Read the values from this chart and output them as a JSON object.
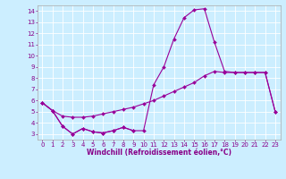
{
  "xlabel": "Windchill (Refroidissement éolien,°C)",
  "bg_color": "#cceeff",
  "line_color": "#990099",
  "grid_color": "#ffffff",
  "xlim": [
    -0.5,
    23.5
  ],
  "ylim": [
    2.5,
    14.5
  ],
  "xticks": [
    0,
    1,
    2,
    3,
    4,
    5,
    6,
    7,
    8,
    9,
    10,
    11,
    12,
    13,
    14,
    15,
    16,
    17,
    18,
    19,
    20,
    21,
    22,
    23
  ],
  "yticks": [
    3,
    4,
    5,
    6,
    7,
    8,
    9,
    10,
    11,
    12,
    13,
    14
  ],
  "c1x": [
    0,
    1,
    2,
    3,
    4,
    5,
    6,
    7,
    8,
    9
  ],
  "c1y": [
    5.8,
    5.1,
    3.7,
    3.0,
    3.5,
    3.2,
    3.1,
    3.3,
    3.6,
    3.3
  ],
  "c2x": [
    0,
    1,
    2,
    3,
    4,
    5,
    6,
    7,
    8,
    9,
    10,
    11,
    12,
    13,
    14,
    15,
    16,
    17,
    18,
    19,
    20,
    21,
    22,
    23
  ],
  "c2y": [
    5.8,
    5.1,
    4.6,
    4.5,
    4.5,
    4.6,
    4.8,
    5.0,
    5.2,
    5.4,
    5.7,
    6.0,
    6.4,
    6.8,
    7.2,
    7.6,
    8.2,
    8.6,
    8.5,
    8.5,
    8.5,
    8.5,
    8.5,
    5.0
  ],
  "c3x": [
    0,
    1,
    2,
    3,
    4,
    5,
    6,
    7,
    8,
    9,
    10,
    11,
    12,
    13,
    14,
    15,
    16,
    17,
    18,
    19,
    20,
    21,
    22,
    23
  ],
  "c3y": [
    5.8,
    5.1,
    3.7,
    3.0,
    3.5,
    3.2,
    3.1,
    3.3,
    3.6,
    3.3,
    3.3,
    7.4,
    9.0,
    11.5,
    13.4,
    14.1,
    14.2,
    11.2,
    8.6,
    8.5,
    8.5,
    8.5,
    8.5,
    5.0
  ],
  "marker": "D",
  "markersize": 2.0,
  "linewidth": 0.8,
  "label_fontsize": 5.5,
  "tick_fontsize": 5.0,
  "tick_color": "#880088",
  "label_color": "#880088",
  "spine_color": "#aaaaaa"
}
